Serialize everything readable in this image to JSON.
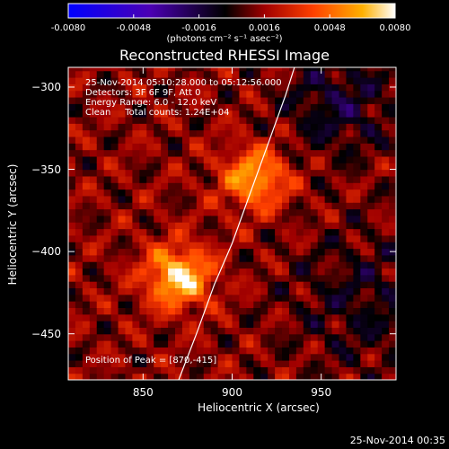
{
  "colorbar": {
    "tick_labels": [
      "-0.0080",
      "-0.0048",
      "-0.0016",
      "0.0016",
      "0.0048",
      "0.0080"
    ],
    "units_label": "(photons cm⁻² s⁻¹ asec⁻²)",
    "range": [
      -0.008,
      0.008
    ]
  },
  "annotation": {
    "line1": "25-Nov-2014 05:10:28.000 to 05:12:56.000",
    "line2": "Detectors: 3F 6F 9F, Att 0",
    "line3": "Energy Range: 6.0 - 12.0 keV",
    "line4": "Clean     Total counts: 1.24E+04",
    "peak": "Position of Peak = [870,-415]"
  },
  "timestamp": "25-Nov-2014 00:35",
  "chart_data": {
    "type": "heatmap",
    "title": "Reconstructed RHESSI Image",
    "xlabel": "Heliocentric X (arcsec)",
    "ylabel": "Heliocentric Y (arcsec)",
    "xlim": [
      808,
      992
    ],
    "ylim": [
      -478,
      -288
    ],
    "x_ticks": [
      850,
      900,
      950
    ],
    "y_ticks": [
      -300,
      -350,
      -400,
      -450
    ],
    "peak": [
      870,
      -415
    ],
    "sources": [
      {
        "x": 870,
        "y": -415,
        "relative_intensity": 1.0
      },
      {
        "x": 913,
        "y": -355,
        "relative_intensity": 0.8
      }
    ],
    "limb_curve": [
      [
        870,
        -478
      ],
      [
        880,
        -450
      ],
      [
        890,
        -420
      ],
      [
        900,
        -395
      ],
      [
        910,
        -365
      ],
      [
        920,
        -335
      ],
      [
        930,
        -305
      ],
      [
        935,
        -288
      ]
    ],
    "colors": {
      "low": "#0000ff",
      "mid": "#000000",
      "high": "#ffffff",
      "limb": "#ffffff"
    }
  }
}
